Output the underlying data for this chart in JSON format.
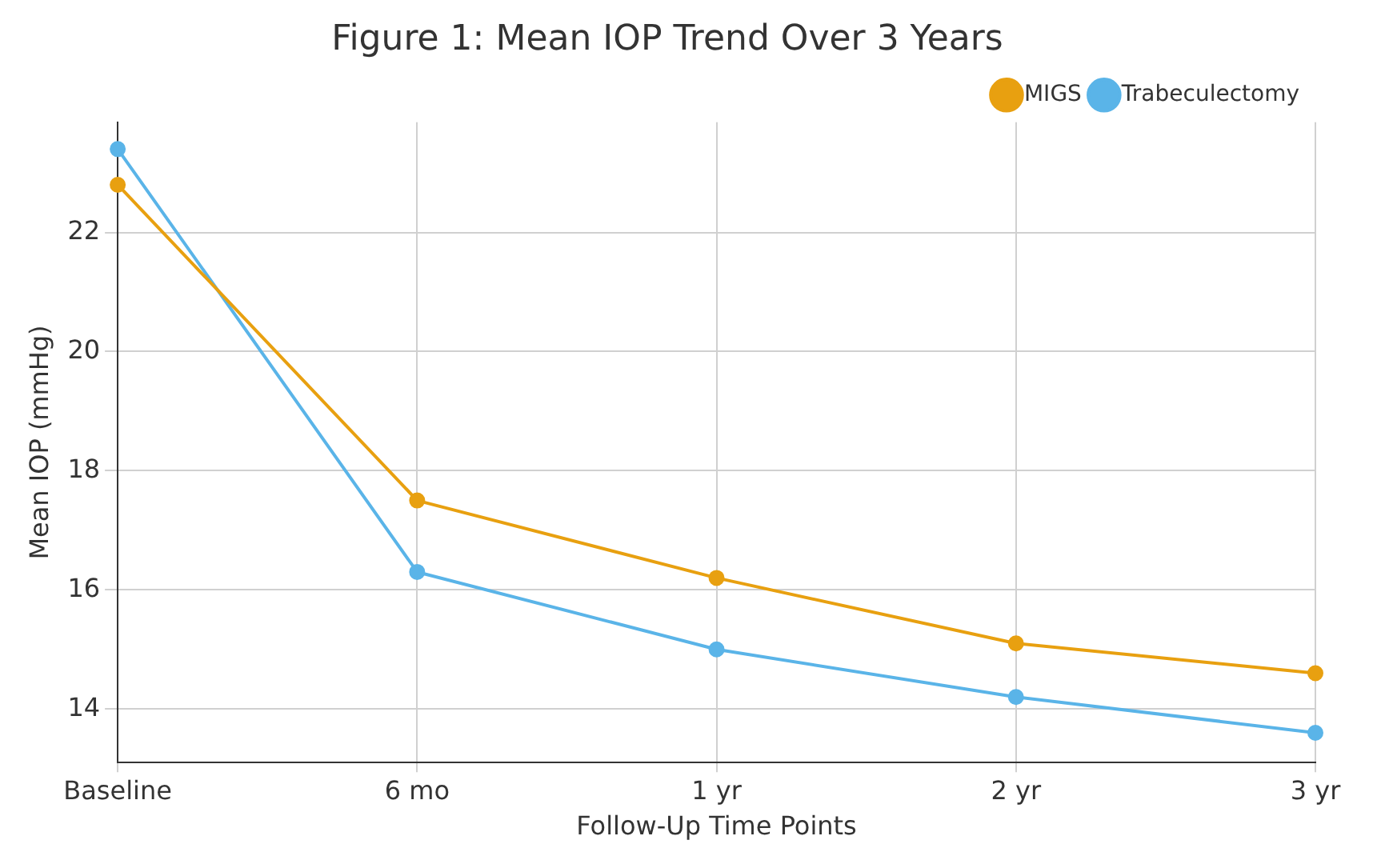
{
  "chart_data": {
    "type": "line",
    "title": "Figure 1: Mean IOP Trend Over 3 Years",
    "xlabel": "Follow-Up Time Points",
    "ylabel": "Mean IOP (mmHg)",
    "categories": [
      "Baseline",
      "6 mo",
      "1 yr",
      "2 yr",
      "3 yr"
    ],
    "series": [
      {
        "name": "MIGS",
        "color": "#e8a010",
        "values": [
          22.8,
          17.5,
          16.2,
          15.1,
          14.6
        ]
      },
      {
        "name": "Trabeculectomy",
        "color": "#5ab4e8",
        "values": [
          23.4,
          16.3,
          15.0,
          14.2,
          13.6
        ]
      }
    ],
    "ylim": [
      13.1,
      23.85
    ],
    "yticks": [
      14,
      16,
      18,
      20,
      22
    ],
    "grid": true,
    "legend": "top right",
    "marker": "circle",
    "line_style": "solid"
  }
}
